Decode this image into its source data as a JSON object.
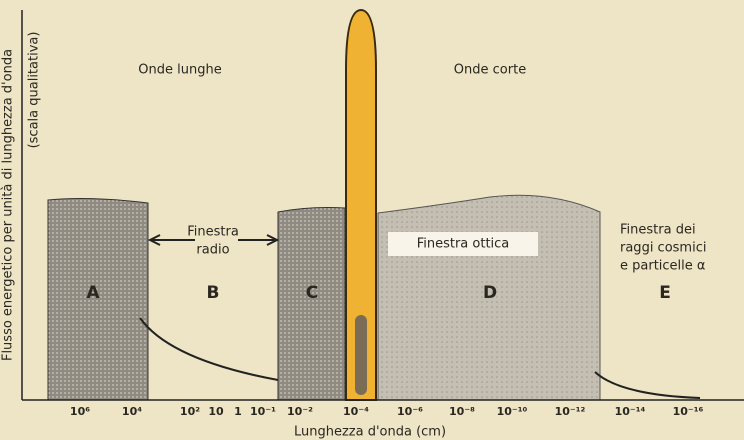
{
  "headings": [
    "Onde lunghe",
    "Onde corte"
  ],
  "y_axis_label": [
    "Flusso energetico per unità di lunghezza d'onda",
    "(scala qualitativa)"
  ],
  "x_axis_label": "Lunghezza d'onda (cm)",
  "windows": {
    "radio": [
      "Finestra",
      "radio"
    ],
    "optical": "Finestra ottica",
    "cosmic": [
      "Finestra dei",
      "raggi cosmici",
      "e particelle α"
    ]
  },
  "regions": [
    "A",
    "B",
    "C",
    "D",
    "E"
  ],
  "ticks": [
    "10⁶",
    "10⁴",
    "10²",
    "10",
    "1",
    "10⁻¹",
    "10⁻²",
    "10⁻⁴",
    "10⁻⁶",
    "10⁻⁸",
    "10⁻¹⁰",
    "10⁻¹²",
    "10⁻¹⁴",
    "10⁻¹⁶"
  ]
}
